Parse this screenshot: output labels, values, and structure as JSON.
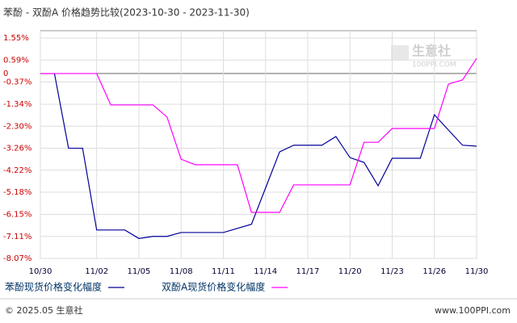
{
  "chart_data": {
    "type": "line",
    "title": "苯酚 - 双酚A 价格趋势比较(2023-10-30 - 2023-11-30)",
    "watermark": "生意社",
    "watermark_url": "100PPI.COM",
    "footer_left": "© 2025.05 生意社",
    "footer_right": "www.100PPI.com",
    "categories": [
      "10/30",
      null,
      null,
      null,
      "11/02",
      null,
      null,
      "11/05",
      null,
      null,
      "11/08",
      null,
      null,
      "11/11",
      null,
      null,
      "11/14",
      null,
      null,
      "11/17",
      null,
      null,
      "11/20",
      null,
      null,
      "11/23",
      null,
      null,
      "11/26",
      null,
      null,
      "11/30"
    ],
    "series": [
      {
        "name": "苯酚现货价格变化幅度",
        "color": "#000099",
        "values": [
          0,
          0,
          -3.26,
          -3.26,
          -6.83,
          -6.83,
          -6.83,
          -7.2,
          -7.11,
          -7.11,
          -6.94,
          -6.94,
          -6.94,
          -6.94,
          -6.76,
          -6.58,
          -5.0,
          -3.42,
          -3.13,
          -3.13,
          -3.13,
          -2.75,
          -3.67,
          -3.88,
          -4.9,
          -3.7,
          -3.7,
          -3.7,
          -1.8,
          -2.47,
          -3.13,
          -3.17
        ]
      },
      {
        "name": "双酚A现货价格变化幅度",
        "color": "#ff00ff",
        "values": [
          0,
          0,
          0,
          0,
          0,
          -1.37,
          -1.37,
          -1.37,
          -1.37,
          -1.9,
          -3.74,
          -3.98,
          -3.98,
          -3.98,
          -3.98,
          -6.06,
          -6.06,
          -6.06,
          -4.86,
          -4.86,
          -4.86,
          -4.86,
          -4.86,
          -3.0,
          -3.0,
          -2.4,
          -2.4,
          -2.4,
          -2.4,
          -0.46,
          -0.28,
          0.66
        ]
      }
    ],
    "ylim": [
      -8.07,
      1.87
    ],
    "yticks": [
      {
        "value": 1.55,
        "label": "1.55%"
      },
      {
        "value": 0.59,
        "label": "0.59%"
      },
      0,
      {
        "value": -0.37,
        "label": "-0.37%"
      },
      {
        "value": -1.34,
        "label": "-1.34%"
      },
      {
        "value": -2.3,
        "label": "-2.30%"
      },
      {
        "value": -3.26,
        "label": "-3.26%"
      },
      {
        "value": -4.22,
        "label": "-4.22%"
      },
      {
        "value": -5.18,
        "label": "-5.18%"
      },
      {
        "value": -6.15,
        "label": "-6.15%"
      },
      {
        "value": -7.11,
        "label": "-7.11%"
      },
      {
        "value": -8.07,
        "label": "-8.07%"
      }
    ],
    "grid": true
  }
}
